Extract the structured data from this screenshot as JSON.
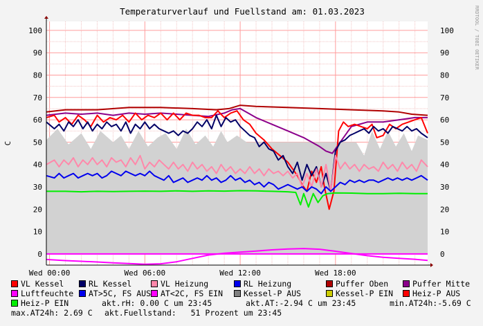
{
  "chart_data": {
    "type": "line",
    "title": "Temperaturverlauf und Fuellstand am: 01.03.2023",
    "ylabel": "C",
    "side_label": "RRDTOOL / TOBI OETIKER",
    "ylim": [
      -5,
      104
    ],
    "y_ticks": [
      0,
      10,
      20,
      30,
      40,
      50,
      60,
      70,
      80,
      90,
      100
    ],
    "xlim": [
      -0.2,
      23.8
    ],
    "x_ticks": [
      {
        "h": 0,
        "label": "Wed 00:00"
      },
      {
        "h": 6,
        "label": "Wed 06:00"
      },
      {
        "h": 12,
        "label": "Wed 12:00"
      },
      {
        "h": 18,
        "label": "Wed 18:00"
      }
    ],
    "grid": true,
    "legend_placement": "bottom",
    "series": [
      {
        "name": "Fuellstand",
        "color": "#d2d2d2",
        "kind": "area",
        "x": [
          -0.2,
          0.5,
          1.2,
          2,
          2.6,
          3.2,
          4,
          4.5,
          5,
          5.6,
          6.2,
          6.8,
          7.3,
          8,
          8.6,
          9.2,
          9.8,
          10.3,
          10.8,
          11.2,
          11.8,
          12.4,
          13,
          13.5,
          14,
          15,
          15.5,
          15.8,
          16.2,
          16.5,
          17,
          17.3,
          17.8,
          18.3,
          18.8,
          19.3,
          19.8,
          20.3,
          20.8,
          21.3,
          21.8,
          22.3,
          22.8,
          23.2,
          23.8
        ],
        "y": [
          51,
          56,
          49,
          54,
          47,
          55,
          50,
          53,
          47,
          55,
          48,
          52,
          54,
          47,
          56,
          49,
          53,
          48,
          55,
          50,
          53,
          50,
          50,
          50,
          50,
          50,
          50,
          50,
          50,
          50,
          50,
          50,
          50,
          50,
          50,
          50,
          44,
          55,
          47,
          55,
          48,
          54,
          46,
          53,
          51
        ]
      },
      {
        "name": "Puffer Oben",
        "color": "#b00000",
        "x": [
          -0.2,
          1,
          3,
          5,
          7,
          9,
          10.5,
          11.3,
          12,
          13,
          15,
          17,
          19,
          21,
          22,
          22.8,
          23.8
        ],
        "y": [
          63.5,
          64.5,
          64.5,
          65.5,
          65.5,
          65,
          64.5,
          65,
          66.5,
          66,
          65.5,
          65,
          64.5,
          64,
          63.5,
          62.5,
          62
        ]
      },
      {
        "name": "Puffer Mitte",
        "color": "#8b008b",
        "x": [
          -0.2,
          1,
          2,
          3,
          4,
          5,
          6,
          7,
          8,
          9,
          10,
          11,
          11.5,
          12,
          12.5,
          13,
          14,
          15,
          16,
          17,
          17.4,
          17.8,
          18.2,
          18.5,
          19,
          19.5,
          20,
          21,
          22,
          23,
          23.8
        ],
        "y": [
          62,
          63,
          62.5,
          63,
          62,
          63,
          62.5,
          63,
          62.5,
          62,
          61.5,
          63,
          64.5,
          65,
          63,
          61,
          58,
          55,
          52,
          48,
          46,
          45,
          49,
          52,
          57,
          58,
          59,
          59,
          60,
          61,
          61
        ]
      },
      {
        "name": "VL Kessel",
        "color": "#ff0000",
        "x": [
          -0.2,
          0.3,
          0.6,
          1,
          1.4,
          1.8,
          2.2,
          2.6,
          3,
          3.4,
          3.8,
          4.2,
          4.6,
          5,
          5.4,
          5.8,
          6.2,
          6.6,
          7,
          7.4,
          7.8,
          8.2,
          8.6,
          9,
          9.4,
          9.8,
          10.2,
          10.6,
          11,
          11.4,
          11.8,
          12.2,
          12.6,
          13,
          13.5,
          14,
          14.5,
          15,
          15.3,
          15.6,
          15.9,
          16.2,
          16.5,
          16.8,
          17.1,
          17.3,
          17.6,
          17.9,
          18.2,
          18.5,
          18.8,
          19.2,
          19.6,
          20,
          20.3,
          20.6,
          21,
          21.4,
          21.8,
          22.2,
          22.6,
          23,
          23.4,
          23.8
        ],
        "y": [
          61,
          62,
          59,
          61,
          58,
          62,
          60,
          57,
          62,
          59,
          61,
          60,
          62,
          59,
          63,
          60,
          62,
          61,
          63,
          60,
          63,
          60,
          63,
          62,
          62,
          61,
          61,
          64,
          61,
          63,
          64,
          60,
          58,
          54,
          51,
          47,
          44,
          41,
          38,
          35,
          31,
          28,
          37,
          32,
          39,
          30,
          20,
          28,
          55,
          59,
          57,
          58,
          57,
          56,
          58,
          52,
          53,
          58,
          56,
          58,
          59,
          60,
          61,
          54
        ]
      },
      {
        "name": "RL Kessel",
        "color": "#000066",
        "x": [
          -0.2,
          0.3,
          0.6,
          0.9,
          1.2,
          1.5,
          1.8,
          2.1,
          2.4,
          2.7,
          3,
          3.3,
          3.6,
          3.9,
          4.2,
          4.5,
          4.8,
          5.1,
          5.4,
          5.7,
          6,
          6.3,
          6.6,
          6.9,
          7.2,
          7.5,
          7.8,
          8.1,
          8.4,
          8.7,
          9,
          9.3,
          9.6,
          9.9,
          10.2,
          10.5,
          10.8,
          11.1,
          11.4,
          11.7,
          12,
          12.3,
          12.6,
          12.9,
          13.2,
          13.5,
          13.8,
          14.1,
          14.4,
          14.7,
          15,
          15.3,
          15.6,
          15.9,
          16.2,
          16.5,
          16.8,
          17.1,
          17.4,
          17.7,
          18,
          18.3,
          18.6,
          18.9,
          19.2,
          19.5,
          19.8,
          20.1,
          20.4,
          20.7,
          21,
          21.3,
          21.6,
          21.9,
          22.2,
          22.5,
          22.8,
          23.1,
          23.4,
          23.8
        ],
        "y": [
          59,
          56,
          58,
          55,
          59,
          57,
          60,
          56,
          59,
          55,
          58,
          56,
          59,
          57,
          58,
          55,
          59,
          54,
          58,
          56,
          59,
          56,
          58,
          56,
          55,
          54,
          55,
          53,
          55,
          54,
          56,
          59,
          57,
          60,
          56,
          62,
          57,
          61,
          59,
          60,
          57,
          55,
          53,
          52,
          48,
          50,
          47,
          46,
          42,
          44,
          39,
          36,
          41,
          33,
          40,
          35,
          39,
          30,
          36,
          28,
          46,
          50,
          51,
          53,
          54,
          55,
          56,
          54,
          57,
          55,
          56,
          54,
          57,
          56,
          55,
          57,
          55,
          56,
          54,
          52
        ]
      },
      {
        "name": "VL Heizung",
        "color": "#ff88aa",
        "x": [
          -0.2,
          0.3,
          0.6,
          0.9,
          1.2,
          1.5,
          1.8,
          2.1,
          2.4,
          2.7,
          3,
          3.3,
          3.6,
          3.9,
          4.2,
          4.5,
          4.8,
          5.1,
          5.4,
          5.7,
          6,
          6.3,
          6.6,
          6.9,
          7.2,
          7.5,
          7.8,
          8.1,
          8.4,
          8.7,
          9,
          9.3,
          9.6,
          9.9,
          10.2,
          10.5,
          10.8,
          11.1,
          11.4,
          11.7,
          12,
          12.3,
          12.6,
          12.9,
          13.2,
          13.5,
          13.8,
          14.1,
          14.4,
          14.7,
          15,
          15.3,
          15.6,
          15.9,
          16.2,
          16.5,
          16.8,
          17.1,
          17.4,
          17.7,
          18,
          18.3,
          18.6,
          18.9,
          19.2,
          19.5,
          19.8,
          20.1,
          20.4,
          20.7,
          21,
          21.3,
          21.6,
          21.9,
          22.2,
          22.5,
          22.8,
          23.1,
          23.4,
          23.8
        ],
        "y": [
          40,
          42,
          39,
          42,
          40,
          43,
          39,
          42,
          40,
          43,
          40,
          42,
          39,
          43,
          41,
          42,
          39,
          43,
          40,
          44,
          38,
          41,
          39,
          42,
          40,
          38,
          41,
          38,
          40,
          37,
          41,
          38,
          40,
          37,
          39,
          36,
          40,
          37,
          39,
          36,
          38,
          36,
          39,
          36,
          38,
          35,
          38,
          36,
          37,
          35,
          37,
          34,
          36,
          30,
          36,
          30,
          38,
          30,
          40,
          28,
          44,
          38,
          41,
          38,
          40,
          37,
          40,
          38,
          39,
          37,
          41,
          38,
          40,
          37,
          41,
          38,
          40,
          37,
          42,
          39
        ]
      },
      {
        "name": "RL Heizung",
        "color": "#0000ee",
        "x": [
          -0.2,
          0.3,
          0.6,
          0.9,
          1.2,
          1.5,
          1.8,
          2.1,
          2.4,
          2.7,
          3,
          3.3,
          3.6,
          3.9,
          4.2,
          4.5,
          4.8,
          5.1,
          5.4,
          5.7,
          6,
          6.3,
          6.6,
          6.9,
          7.2,
          7.5,
          7.8,
          8.1,
          8.4,
          8.7,
          9,
          9.3,
          9.6,
          9.9,
          10.2,
          10.5,
          10.8,
          11.1,
          11.4,
          11.7,
          12,
          12.3,
          12.6,
          12.9,
          13.2,
          13.5,
          13.8,
          14.1,
          14.4,
          14.7,
          15,
          15.3,
          15.6,
          15.9,
          16.2,
          16.5,
          16.8,
          17.1,
          17.4,
          17.7,
          18,
          18.3,
          18.6,
          18.9,
          19.2,
          19.5,
          19.8,
          20.1,
          20.4,
          20.7,
          21,
          21.3,
          21.6,
          21.9,
          22.2,
          22.5,
          22.8,
          23.1,
          23.4,
          23.8
        ],
        "y": [
          35,
          34,
          36,
          34,
          35,
          36,
          34,
          35,
          36,
          35,
          36,
          34,
          35,
          37,
          36,
          35,
          37,
          36,
          35,
          36,
          35,
          37,
          35,
          34,
          33,
          35,
          32,
          33,
          34,
          32,
          33,
          34,
          33,
          35,
          33,
          34,
          32,
          33,
          35,
          33,
          34,
          32,
          33,
          31,
          32,
          30,
          32,
          31,
          29,
          30,
          31,
          30,
          29,
          30,
          28,
          30,
          29,
          27,
          30,
          28,
          30,
          32,
          31,
          33,
          32,
          33,
          32,
          33,
          33,
          32,
          33,
          34,
          33,
          34,
          33,
          34,
          33,
          34,
          35,
          33
        ]
      },
      {
        "name": "Luftfeuchte",
        "color": "#ff00ff",
        "x": [
          -0.2,
          23.8
        ],
        "y": [
          0,
          0
        ]
      },
      {
        "name": "AT>5C, FS AUS",
        "color": "#ff00ff",
        "x": [
          -0.2,
          1,
          2,
          3,
          4,
          5,
          6,
          7,
          8,
          9,
          10,
          11,
          12,
          13,
          14,
          15,
          16,
          17,
          18,
          19,
          20,
          21,
          22,
          23,
          23.8
        ],
        "y": [
          -2.5,
          -3,
          -3.3,
          -3.6,
          -4,
          -4.3,
          -4.6,
          -4.4,
          -3.5,
          -2,
          -0.5,
          0.3,
          0.8,
          1.3,
          1.8,
          2.2,
          2.4,
          2.1,
          1.2,
          0.2,
          -0.8,
          -1.5,
          -2,
          -2.4,
          -2.9
        ]
      },
      {
        "name": "Heiz-P EIN",
        "color": "#00ee00",
        "x": [
          -0.2,
          1,
          2,
          3,
          4,
          5,
          6,
          7,
          8,
          9,
          10,
          11,
          12,
          13,
          14,
          15,
          15.5,
          15.8,
          16,
          16.3,
          16.6,
          16.9,
          17.2,
          17.5,
          18,
          19,
          20,
          21,
          22,
          23,
          23.8
        ],
        "y": [
          28,
          28,
          27.8,
          28,
          27.9,
          28,
          28.1,
          28,
          28.2,
          28,
          28.2,
          28.1,
          28.3,
          28.2,
          28,
          27.8,
          27.5,
          22,
          27,
          21,
          27,
          23,
          26,
          27,
          27.3,
          27.2,
          27,
          27,
          27.1,
          27,
          27
        ]
      }
    ]
  },
  "legend": [
    [
      {
        "label": "VL Kessel",
        "color": "#ff0000"
      },
      {
        "label": "RL Kessel",
        "color": "#000066"
      },
      {
        "label": "VL Heizung",
        "color": "#ff88aa"
      },
      {
        "label": "RL Heizung",
        "color": "#0000ee"
      },
      {
        "label": "Puffer Oben",
        "color": "#b00000"
      },
      {
        "label": "Puffer Mitte",
        "color": "#8b008b"
      }
    ],
    [
      {
        "label": "Luftfeuchte",
        "color": "#ff00ff"
      },
      {
        "label": "AT>5C, FS AUS",
        "color": "#0000ee"
      },
      {
        "label": "AT<2C, FS EIN",
        "color": "#ff00ff"
      },
      {
        "label": "Kessel-P AUS",
        "color": "#808080"
      },
      {
        "label": "Kessel-P EIN",
        "color": "#cccc00"
      },
      {
        "label": "Heiz-P AUS",
        "color": "#ff0000"
      }
    ],
    [
      {
        "label": "Heiz-P EIN",
        "color": "#00ee00"
      }
    ]
  ],
  "stats": {
    "rh": "akt.rH: 0.00 C um 23:45",
    "at": "akt.AT:-2.94 C um 23:45",
    "min": "min.AT24h:-5.69 C",
    "max": "max.AT24h: 2.69 C",
    "fuell": "akt.Fuellstand:   51 Prozent um 23:45"
  }
}
